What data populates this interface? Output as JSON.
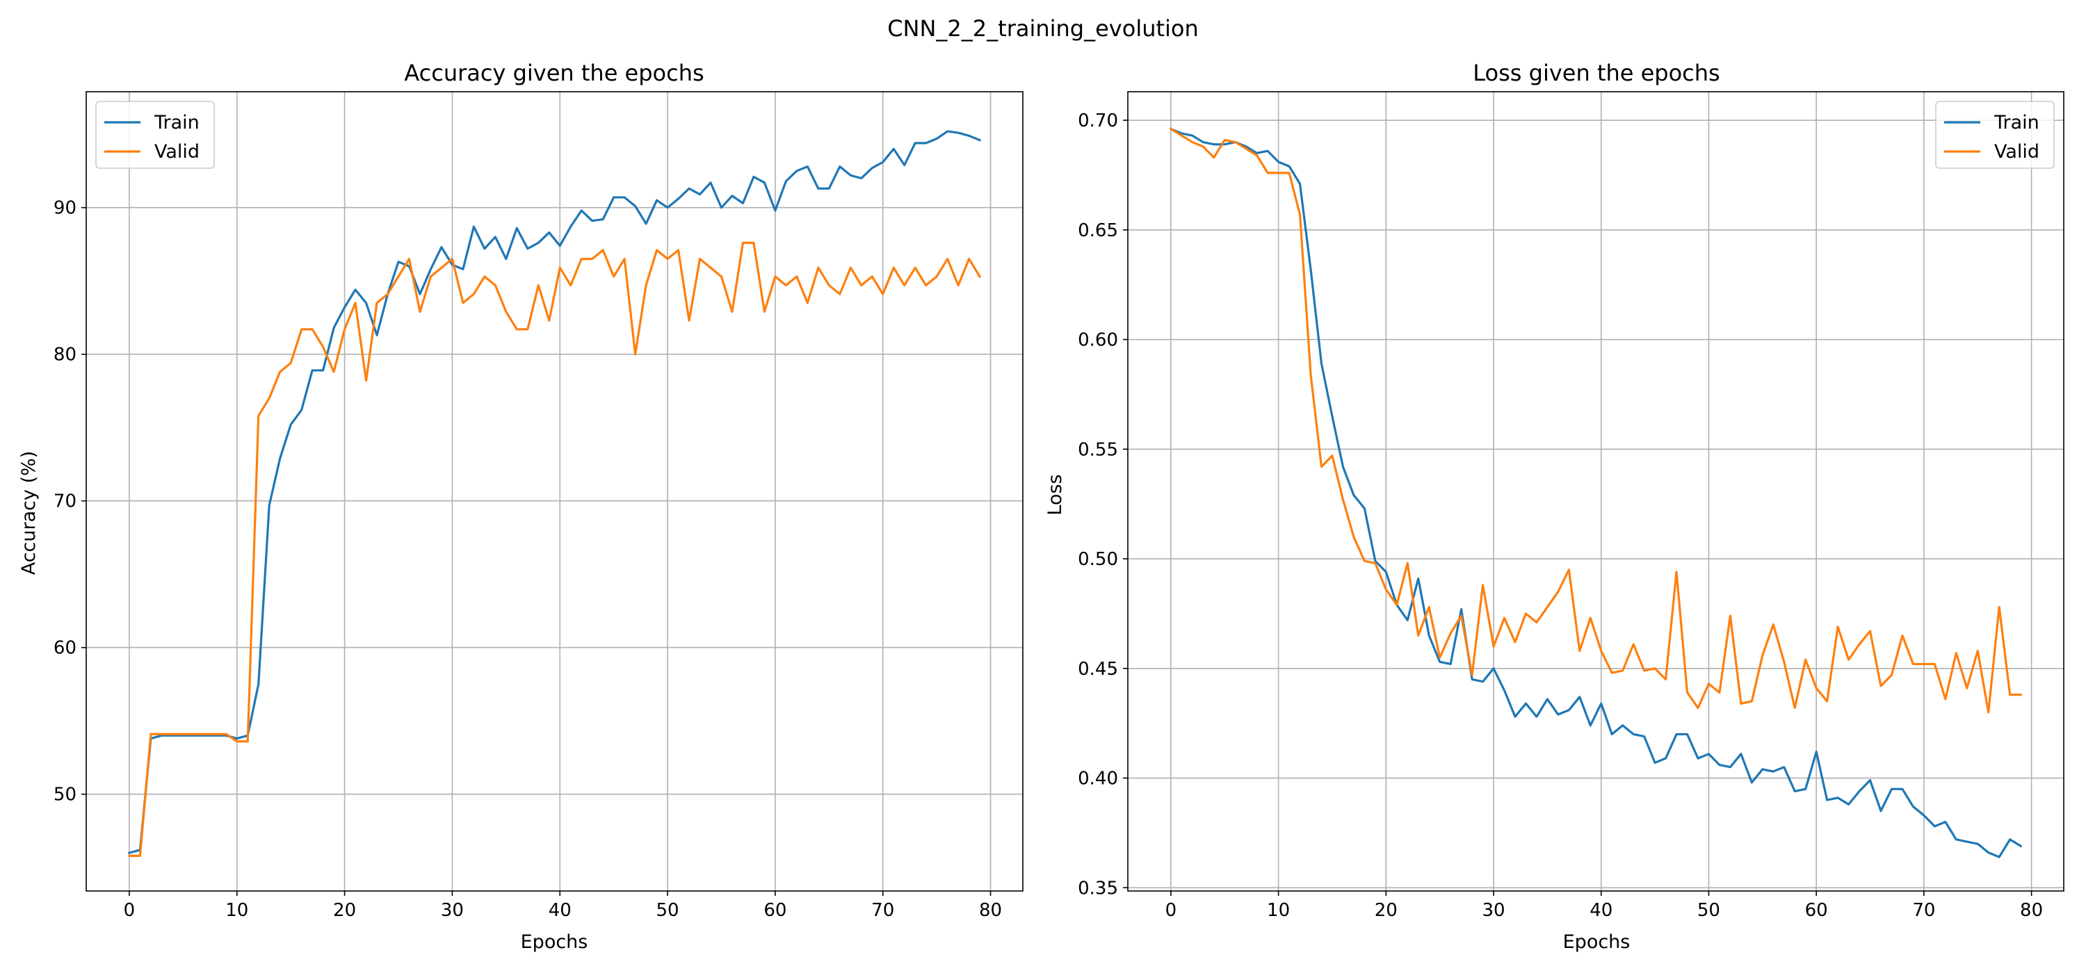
{
  "suptitle": "CNN_2_2_training_evolution",
  "chart_data": [
    {
      "type": "line",
      "title": "Accuracy given the epochs",
      "xlabel": "Epochs",
      "ylabel": "Accuracy (%)",
      "xlim": [
        -4,
        83
      ],
      "ylim": [
        43.4,
        97.9
      ],
      "xticks": [
        0,
        10,
        20,
        30,
        40,
        50,
        60,
        70,
        80
      ],
      "yticks": [
        50,
        60,
        70,
        80,
        90
      ],
      "ytick_labels": [
        "50",
        "60",
        "70",
        "80",
        "90"
      ],
      "grid": true,
      "legend": "upper left",
      "x": [
        0,
        1,
        2,
        3,
        4,
        5,
        6,
        7,
        8,
        9,
        10,
        11,
        12,
        13,
        14,
        15,
        16,
        17,
        18,
        19,
        20,
        21,
        22,
        23,
        24,
        25,
        26,
        27,
        28,
        29,
        30,
        31,
        32,
        33,
        34,
        35,
        36,
        37,
        38,
        39,
        40,
        41,
        42,
        43,
        44,
        45,
        46,
        47,
        48,
        49,
        50,
        51,
        52,
        53,
        54,
        55,
        56,
        57,
        58,
        59,
        60,
        61,
        62,
        63,
        64,
        65,
        66,
        67,
        68,
        69,
        70,
        71,
        72,
        73,
        74,
        75,
        76,
        77,
        78,
        79
      ],
      "series": [
        {
          "name": "Train",
          "color": "#1f77b4",
          "values": [
            46.0,
            46.2,
            53.8,
            54.0,
            54.0,
            54.0,
            54.0,
            54.0,
            54.0,
            54.0,
            53.8,
            54.0,
            57.5,
            69.7,
            72.9,
            75.2,
            76.2,
            78.9,
            78.9,
            81.8,
            83.2,
            84.4,
            83.5,
            81.3,
            84.1,
            86.3,
            86.0,
            84.1,
            85.8,
            87.3,
            86.1,
            85.8,
            88.7,
            87.2,
            88.0,
            86.5,
            88.6,
            87.2,
            87.6,
            88.3,
            87.4,
            88.7,
            89.8,
            89.1,
            89.2,
            90.7,
            90.7,
            90.1,
            88.9,
            90.5,
            90.0,
            90.6,
            91.3,
            90.9,
            91.7,
            90.0,
            90.8,
            90.3,
            92.1,
            91.7,
            89.8,
            91.8,
            92.5,
            92.8,
            91.3,
            91.3,
            92.8,
            92.2,
            92.0,
            92.7,
            93.1,
            94.0,
            92.9,
            94.4,
            94.4,
            94.7,
            95.2,
            95.1,
            94.9,
            94.6
          ]
        },
        {
          "name": "Valid",
          "color": "#ff7f0e",
          "values": [
            45.8,
            45.8,
            54.1,
            54.1,
            54.1,
            54.1,
            54.1,
            54.1,
            54.1,
            54.1,
            53.6,
            53.6,
            75.8,
            77.0,
            78.8,
            79.4,
            81.7,
            81.7,
            80.5,
            78.8,
            81.7,
            83.5,
            78.2,
            83.5,
            84.1,
            85.3,
            86.5,
            82.9,
            85.3,
            85.9,
            86.5,
            83.5,
            84.1,
            85.3,
            84.7,
            82.9,
            81.7,
            81.7,
            84.7,
            82.3,
            85.9,
            84.7,
            86.5,
            86.5,
            87.1,
            85.3,
            86.5,
            80.0,
            84.7,
            87.1,
            86.5,
            87.1,
            82.3,
            86.5,
            85.9,
            85.3,
            82.9,
            87.6,
            87.6,
            82.9,
            85.3,
            84.7,
            85.3,
            83.5,
            85.9,
            84.7,
            84.1,
            85.9,
            84.7,
            85.3,
            84.1,
            85.9,
            84.7,
            85.9,
            84.7,
            85.3,
            86.5,
            84.7,
            86.5,
            85.3
          ]
        }
      ]
    },
    {
      "type": "line",
      "title": "Loss given the epochs",
      "xlabel": "Epochs",
      "ylabel": "Loss",
      "xlim": [
        -4,
        83
      ],
      "ylim": [
        0.3485,
        0.713
      ],
      "xticks": [
        0,
        10,
        20,
        30,
        40,
        50,
        60,
        70,
        80
      ],
      "yticks": [
        0.35,
        0.4,
        0.45,
        0.5,
        0.55,
        0.6,
        0.65,
        0.7
      ],
      "ytick_labels": [
        "0.35",
        "0.40",
        "0.45",
        "0.50",
        "0.55",
        "0.60",
        "0.65",
        "0.70"
      ],
      "grid": true,
      "legend": "upper right",
      "x": [
        0,
        1,
        2,
        3,
        4,
        5,
        6,
        7,
        8,
        9,
        10,
        11,
        12,
        13,
        14,
        15,
        16,
        17,
        18,
        19,
        20,
        21,
        22,
        23,
        24,
        25,
        26,
        27,
        28,
        29,
        30,
        31,
        32,
        33,
        34,
        35,
        36,
        37,
        38,
        39,
        40,
        41,
        42,
        43,
        44,
        45,
        46,
        47,
        48,
        49,
        50,
        51,
        52,
        53,
        54,
        55,
        56,
        57,
        58,
        59,
        60,
        61,
        62,
        63,
        64,
        65,
        66,
        67,
        68,
        69,
        70,
        71,
        72,
        73,
        74,
        75,
        76,
        77,
        78,
        79
      ],
      "series": [
        {
          "name": "Train",
          "color": "#1f77b4",
          "values": [
            0.696,
            0.694,
            0.693,
            0.69,
            0.689,
            0.689,
            0.69,
            0.688,
            0.685,
            0.686,
            0.681,
            0.679,
            0.671,
            0.632,
            0.589,
            0.565,
            0.542,
            0.529,
            0.523,
            0.499,
            0.494,
            0.479,
            0.472,
            0.491,
            0.465,
            0.453,
            0.452,
            0.477,
            0.445,
            0.444,
            0.45,
            0.44,
            0.428,
            0.434,
            0.428,
            0.436,
            0.429,
            0.431,
            0.437,
            0.424,
            0.434,
            0.42,
            0.424,
            0.42,
            0.419,
            0.407,
            0.409,
            0.42,
            0.42,
            0.409,
            0.411,
            0.406,
            0.405,
            0.411,
            0.398,
            0.404,
            0.403,
            0.405,
            0.394,
            0.395,
            0.412,
            0.39,
            0.391,
            0.388,
            0.394,
            0.399,
            0.385,
            0.395,
            0.395,
            0.387,
            0.383,
            0.378,
            0.38,
            0.372,
            0.371,
            0.37,
            0.366,
            0.364,
            0.372,
            0.369
          ]
        },
        {
          "name": "Valid",
          "color": "#ff7f0e",
          "values": [
            0.696,
            0.693,
            0.69,
            0.688,
            0.683,
            0.691,
            0.69,
            0.687,
            0.684,
            0.676,
            0.676,
            0.676,
            0.657,
            0.584,
            0.542,
            0.547,
            0.527,
            0.51,
            0.499,
            0.498,
            0.486,
            0.479,
            0.498,
            0.465,
            0.478,
            0.455,
            0.466,
            0.474,
            0.447,
            0.488,
            0.46,
            0.473,
            0.462,
            0.475,
            0.471,
            0.478,
            0.485,
            0.495,
            0.458,
            0.473,
            0.458,
            0.448,
            0.449,
            0.461,
            0.449,
            0.45,
            0.445,
            0.494,
            0.439,
            0.432,
            0.443,
            0.439,
            0.474,
            0.434,
            0.435,
            0.456,
            0.47,
            0.453,
            0.432,
            0.454,
            0.441,
            0.435,
            0.469,
            0.454,
            0.461,
            0.467,
            0.442,
            0.447,
            0.465,
            0.452,
            0.452,
            0.452,
            0.436,
            0.457,
            0.441,
            0.458,
            0.43,
            0.478,
            0.438,
            0.438
          ]
        }
      ]
    }
  ]
}
